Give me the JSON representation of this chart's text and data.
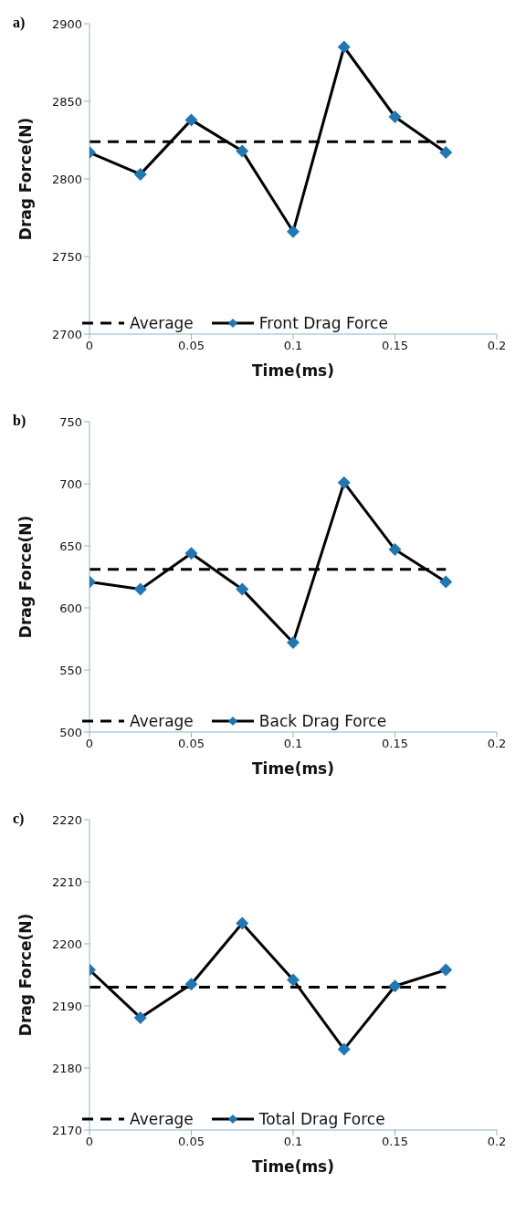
{
  "chart_data": [
    {
      "type": "line",
      "title": "a)",
      "xlabel": "Time(ms)",
      "ylabel": "Drag Force(N)",
      "xlim": [
        0,
        0.2
      ],
      "xticks": [
        0,
        0.05,
        0.1,
        0.15,
        0.2
      ],
      "ylim": [
        2700,
        2900
      ],
      "yticks": [
        2700,
        2750,
        2800,
        2850,
        2900
      ],
      "grid": false,
      "legend": "bottom",
      "series": [
        {
          "name": "Average",
          "color": "#000000",
          "line_style": "dashed",
          "marker": "none",
          "x": [
            0,
            0.175
          ],
          "values": [
            2824,
            2824
          ]
        },
        {
          "name": "Front Drag Force",
          "color": "#000000",
          "line_style": "solid",
          "marker": "diamond",
          "x": [
            0,
            0.025,
            0.05,
            0.075,
            0.1,
            0.125,
            0.15,
            0.175
          ],
          "values": [
            2817,
            2803,
            2838,
            2818,
            2766,
            2885,
            2840,
            2817
          ]
        }
      ]
    },
    {
      "type": "line",
      "title": "b)",
      "xlabel": "Time(ms)",
      "ylabel": "Drag Force(N)",
      "xlim": [
        0,
        0.2
      ],
      "xticks": [
        0,
        0.05,
        0.1,
        0.15,
        0.2
      ],
      "ylim": [
        500,
        750
      ],
      "yticks": [
        500,
        550,
        600,
        650,
        700,
        750
      ],
      "grid": false,
      "legend": "bottom",
      "series": [
        {
          "name": "Average",
          "color": "#000000",
          "line_style": "dashed",
          "marker": "none",
          "x": [
            0,
            0.175
          ],
          "values": [
            631,
            631
          ]
        },
        {
          "name": "Back Drag Force",
          "color": "#000000",
          "line_style": "solid",
          "marker": "diamond",
          "x": [
            0,
            0.025,
            0.05,
            0.075,
            0.1,
            0.125,
            0.15,
            0.175
          ],
          "values": [
            621,
            615,
            644,
            615,
            572,
            701,
            647,
            621
          ]
        }
      ]
    },
    {
      "type": "line",
      "title": "c)",
      "xlabel": "Time(ms)",
      "ylabel": "Drag Force(N)",
      "xlim": [
        0,
        0.2
      ],
      "xticks": [
        0,
        0.05,
        0.1,
        0.15,
        0.2
      ],
      "ylim": [
        2170,
        2220
      ],
      "yticks": [
        2170,
        2180,
        2190,
        2200,
        2210,
        2220
      ],
      "grid": false,
      "legend": "bottom",
      "series": [
        {
          "name": "Average",
          "color": "#000000",
          "line_style": "dashed",
          "marker": "none",
          "x": [
            0,
            0.175
          ],
          "values": [
            2193,
            2193
          ]
        },
        {
          "name": "Total Drag Force",
          "color": "#000000",
          "line_style": "solid",
          "marker": "diamond",
          "x": [
            0,
            0.025,
            0.05,
            0.075,
            0.1,
            0.125,
            0.15,
            0.175
          ],
          "values": [
            2195.8,
            2188.1,
            2193.5,
            2203.3,
            2194.2,
            2183,
            2193.2,
            2195.8
          ]
        }
      ]
    }
  ]
}
